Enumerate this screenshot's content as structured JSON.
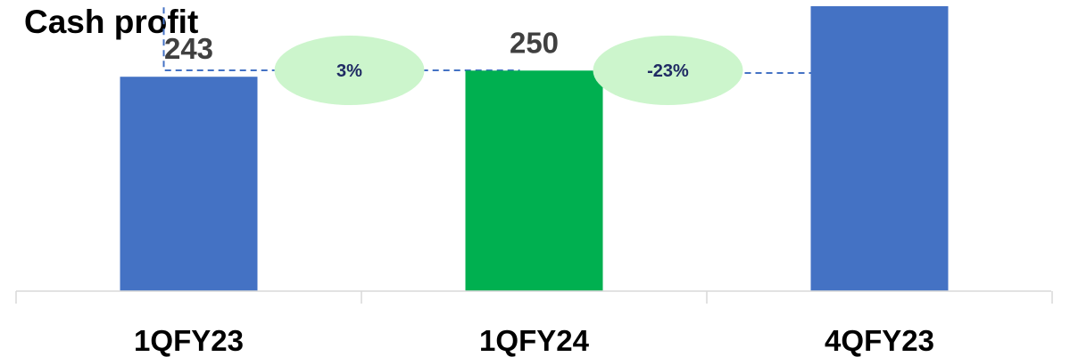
{
  "chart_data": {
    "type": "bar",
    "title": "Cash profit",
    "categories": [
      "1QFY23",
      "1QFY24",
      "4QFY23"
    ],
    "values": [
      243,
      250,
      323
    ],
    "bar_colors": [
      "#4472c4",
      "#00b050",
      "#4472c4"
    ],
    "ylim": [
      0,
      330
    ],
    "grid": false,
    "annotations": [
      {
        "label": "3%",
        "from": "1QFY23",
        "to": "1QFY24"
      },
      {
        "label": "-23%",
        "from": "4QFY23",
        "to": "1QFY24"
      }
    ],
    "annotation_fill": "#ccf5cc",
    "annotation_line_color": "#4472c4"
  }
}
